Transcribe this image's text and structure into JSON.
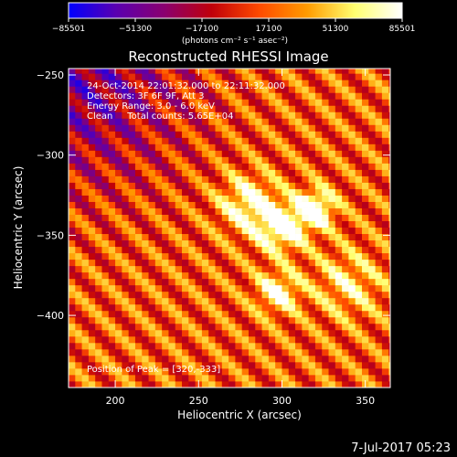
{
  "chart_data": {
    "type": "heatmap",
    "title": "Reconstructed RHESSI Image",
    "xlabel": "Heliocentric X (arcsec)",
    "ylabel": "Heliocentric Y (arcsec)",
    "xlim": [
      172,
      365
    ],
    "ylim": [
      -445,
      -246
    ],
    "x_ticks": [
      {
        "value": 200,
        "label": "200"
      },
      {
        "value": 250,
        "label": "250"
      },
      {
        "value": 300,
        "label": "300"
      },
      {
        "value": 350,
        "label": "350"
      }
    ],
    "y_ticks": [
      {
        "value": -250,
        "label": "−250"
      },
      {
        "value": -300,
        "label": "−300"
      },
      {
        "value": -350,
        "label": "−350"
      },
      {
        "value": -400,
        "label": "−400"
      }
    ],
    "colorbar": {
      "min": -85501,
      "max": 85501,
      "ticks": [
        {
          "value": -85501,
          "label": "−85501"
        },
        {
          "value": -51300,
          "label": "−51300"
        },
        {
          "value": -17100,
          "label": "−17100"
        },
        {
          "value": 17100,
          "label": "17100"
        },
        {
          "value": 51300,
          "label": "51300"
        },
        {
          "value": 85501,
          "label": "85501"
        }
      ],
      "units_label": "(photons cm⁻² s⁻¹ asec⁻²)",
      "colormap": [
        "#0000ff",
        "#5a00b0",
        "#8a0070",
        "#c0000a",
        "#ff4a00",
        "#ff9b00",
        "#ffff70",
        "#ffffff"
      ]
    },
    "annotations": [
      "24-Oct-2014 22:01:32.000 to 22:11:32.000",
      "Detectors: 3F 6F 9F, Att 3",
      "Energy Range: 3.0 - 6.0 keV",
      "Clean     Total counts: 5.65E+04"
    ],
    "peak_label": "Position of Peak = [320,-333]",
    "peak": [
      320,
      -333
    ],
    "grid": false,
    "pixel_size_arcsec": 4,
    "sources": [
      {
        "x": 320,
        "y": -333,
        "amplitude": 85501,
        "sigma": 8
      },
      {
        "x": 300,
        "y": -345,
        "amplitude": 78000,
        "sigma": 10
      },
      {
        "x": 280,
        "y": -330,
        "amplitude": 62000,
        "sigma": 12
      },
      {
        "x": 298,
        "y": -385,
        "amplitude": 60000,
        "sigma": 9
      },
      {
        "x": 340,
        "y": -380,
        "amplitude": 40000,
        "sigma": 14
      }
    ],
    "background_level": 17100,
    "low_corner": {
      "x": 180,
      "y": -255,
      "amplitude": -60000,
      "sigma": 45
    },
    "stripe_modulation": 35000
  },
  "footer": {
    "date": "7-Jul-2017 05:23"
  }
}
